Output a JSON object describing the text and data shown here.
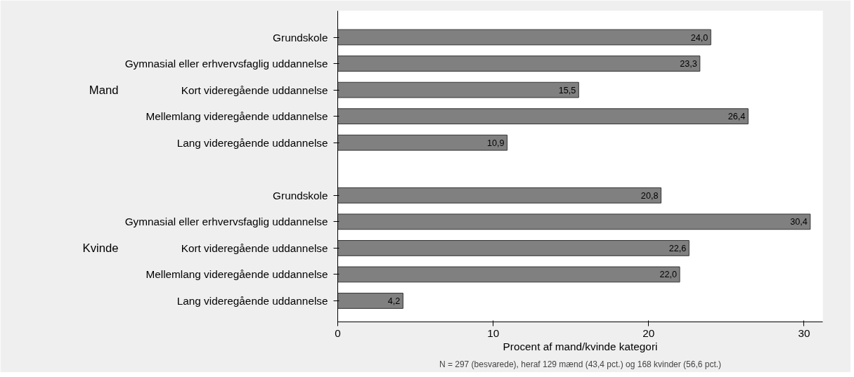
{
  "chart_data": {
    "type": "bar",
    "orientation": "horizontal",
    "categories": [
      "Grundskole",
      "Gymnasial eller erhvervsfaglig uddannelse",
      "Kort videregående uddannelse",
      "Mellemlang videregående uddannelse",
      "Lang videregående uddannelse",
      null,
      "Grundskole",
      "Gymnasial eller erhvervsfaglig uddannelse",
      "Kort videregående uddannelse",
      "Mellemlang videregående uddannelse",
      "Lang videregående uddannelse"
    ],
    "values": [
      24.0,
      23.3,
      15.5,
      26.4,
      10.9,
      null,
      20.8,
      30.4,
      22.6,
      22.0,
      4.2
    ],
    "value_labels": [
      "24,0",
      "23,3",
      "15,5",
      "26,4",
      "10,9",
      null,
      "20,8",
      "30,4",
      "22,6",
      "22,0",
      "4,2"
    ],
    "color": "#808080",
    "xlim": [
      0,
      31.2
    ],
    "xticks": [
      0,
      10,
      20,
      30
    ],
    "xlabel": "Procent af mand/kvinde kategori",
    "annotations": [
      "Mand",
      "Kvinde",
      "N = 297 (besvarede), heraf 129 mænd (43,4 pct.) og 168 kvinder (56,6 pct.)"
    ],
    "grid": false
  }
}
